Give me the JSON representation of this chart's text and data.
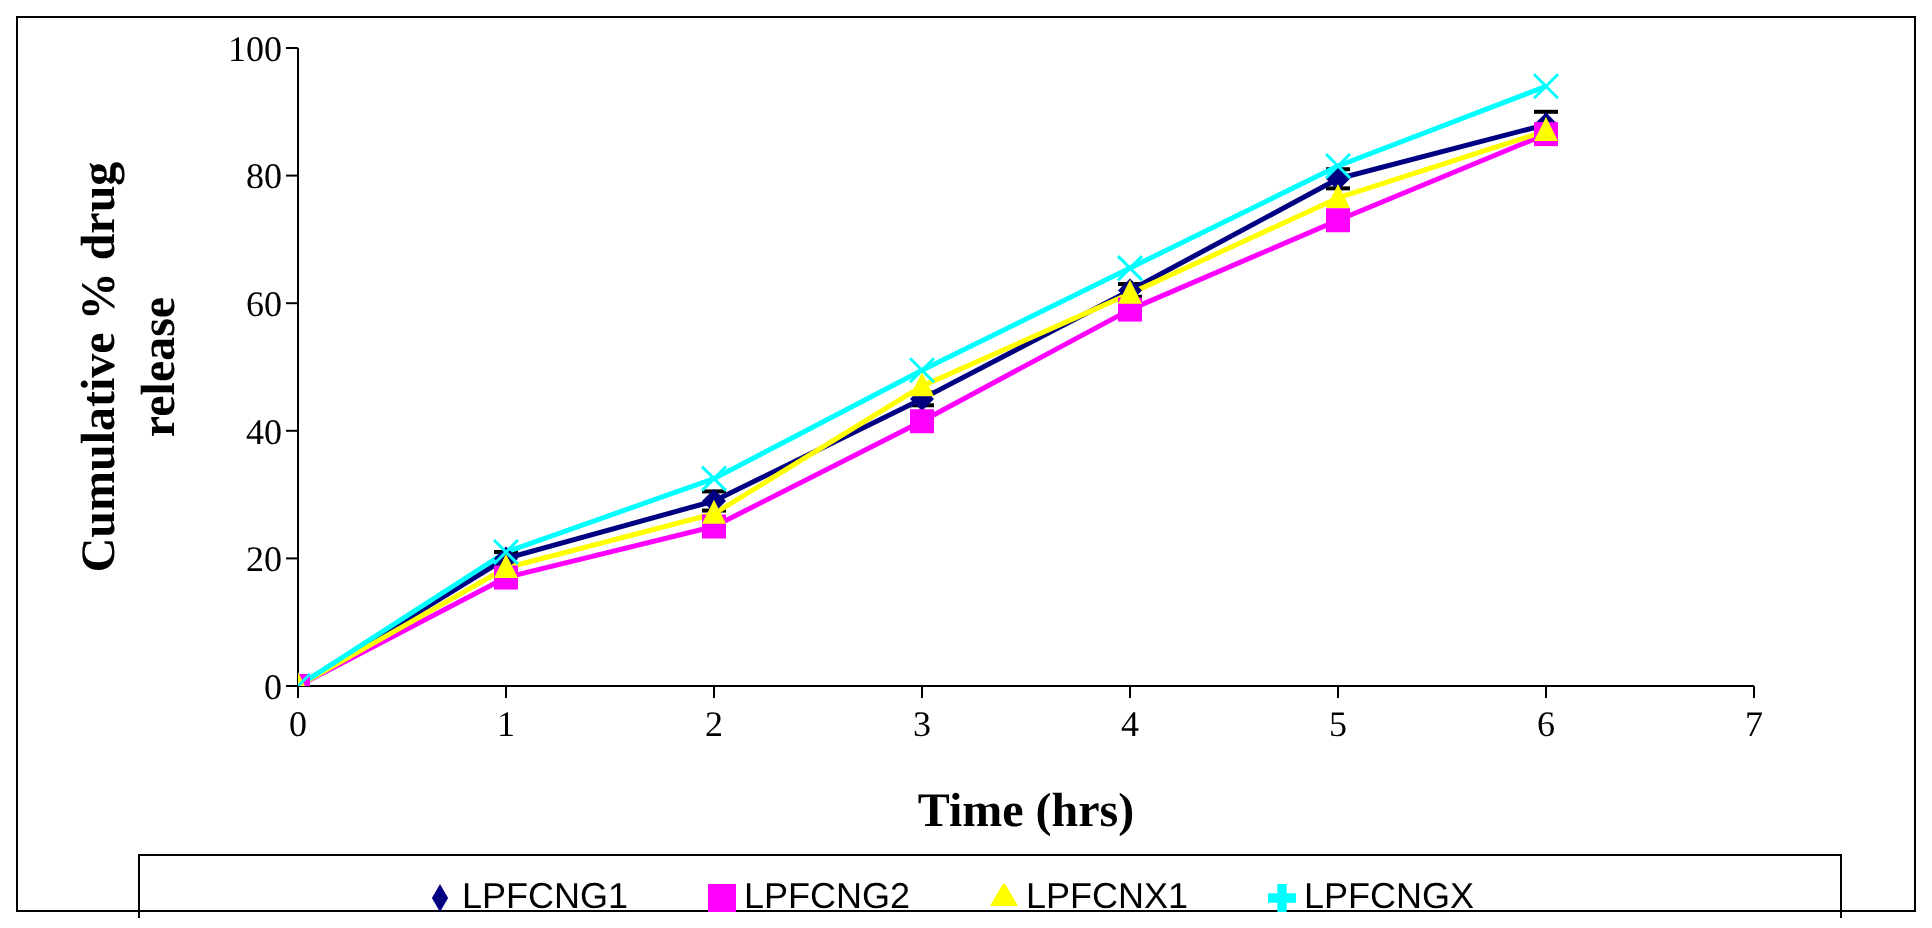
{
  "chart_data": {
    "type": "line",
    "xlabel": "Time (hrs)",
    "ylabel": "Cumulative % drug release",
    "x": [
      0,
      1,
      2,
      3,
      4,
      5,
      6
    ],
    "xlim": [
      0,
      7
    ],
    "xticks": [
      0,
      1,
      2,
      3,
      4,
      5,
      6,
      7
    ],
    "ylim": [
      0,
      100
    ],
    "yticks": [
      0,
      20,
      40,
      60,
      80,
      100
    ],
    "legend": "bottom",
    "line_style": "solid",
    "series": [
      {
        "name": "LPFCNG1",
        "color": "#000080",
        "marker": "diamond",
        "values": [
          0,
          20,
          29,
          45,
          62,
          79.5,
          88
        ],
        "errors": [
          null,
          1,
          1.5,
          1,
          1,
          1.5,
          2
        ]
      },
      {
        "name": "LPFCNG2",
        "color": "#ff00ff",
        "marker": "square",
        "values": [
          0,
          17,
          25,
          41.5,
          59,
          73,
          86.5
        ]
      },
      {
        "name": "LPFCNX1",
        "color": "#ffff00",
        "marker": "triangle",
        "values": [
          0,
          18.5,
          27,
          47,
          61.5,
          76.5,
          87
        ]
      },
      {
        "name": "LPFCNGX",
        "color": "#00ffff",
        "marker": "cross",
        "values": [
          0,
          21,
          32.5,
          49.5,
          65.5,
          81.5,
          94
        ]
      }
    ]
  }
}
